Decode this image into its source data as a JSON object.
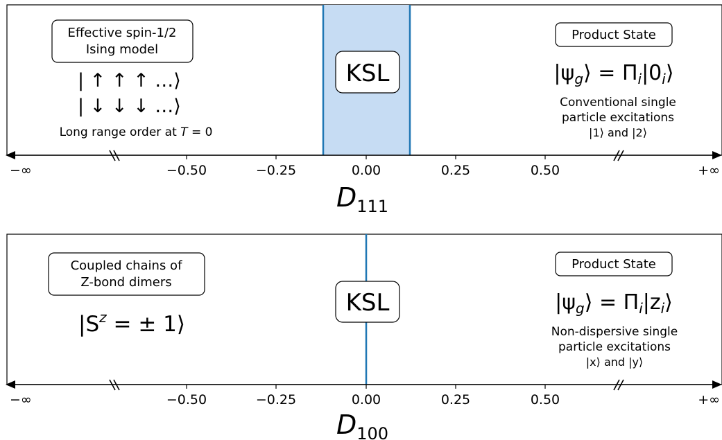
{
  "panels": [
    {
      "axis_label_base": "D",
      "axis_label_sub": "111",
      "tick_labels": [
        "−∞",
        "−0.50",
        "−0.25",
        "0.00",
        "0.25",
        "0.50",
        "+∞"
      ],
      "left_box_lines": [
        "Effective spin-1/2",
        "Ising model"
      ],
      "left_state_1": "| ↑  ↑  ↑ …⟩",
      "left_state_2": "| ↓  ↓  ↓ …⟩",
      "left_note_prefix": "Long range order at ",
      "left_note_math": "T",
      "left_note_suffix": " = 0",
      "center_label": "KSL",
      "right_box": "Product State",
      "right_eq_a": "|ψ",
      "right_eq_a_sub": "g",
      "right_eq_b": "⟩ = Π",
      "right_eq_b_sub": "i",
      "right_eq_c": "|0",
      "right_eq_c_sub": "i",
      "right_eq_d": "⟩",
      "right_desc": [
        "Conventional single",
        "particle excitations",
        "|1⟩ and |2⟩"
      ],
      "shaded_range": [
        -0.12,
        0.12
      ],
      "shade_color": "#c6dcf3",
      "line_color": "#1f77b4"
    },
    {
      "axis_label_base": "D",
      "axis_label_sub": "100",
      "tick_labels": [
        "−∞",
        "−0.50",
        "−0.25",
        "0.00",
        "0.25",
        "0.50",
        "+∞"
      ],
      "left_box_lines": [
        "Coupled chains of",
        "Z-bond dimers"
      ],
      "left_state_a": "|S",
      "left_state_sup": "z",
      "left_state_b": " = ± 1⟩",
      "center_label": "KSL",
      "right_box": "Product State",
      "right_eq_a": "|ψ",
      "right_eq_a_sub": "g",
      "right_eq_b": "⟩ = Π",
      "right_eq_b_sub": "i",
      "right_eq_c": "|z",
      "right_eq_c_sub": "i",
      "right_eq_d": "⟩",
      "right_desc": [
        "Non-dispersive single",
        "particle excitations",
        "|x⟩ and |y⟩"
      ],
      "critical_point": 0.0,
      "line_color": "#1f77b4"
    }
  ]
}
